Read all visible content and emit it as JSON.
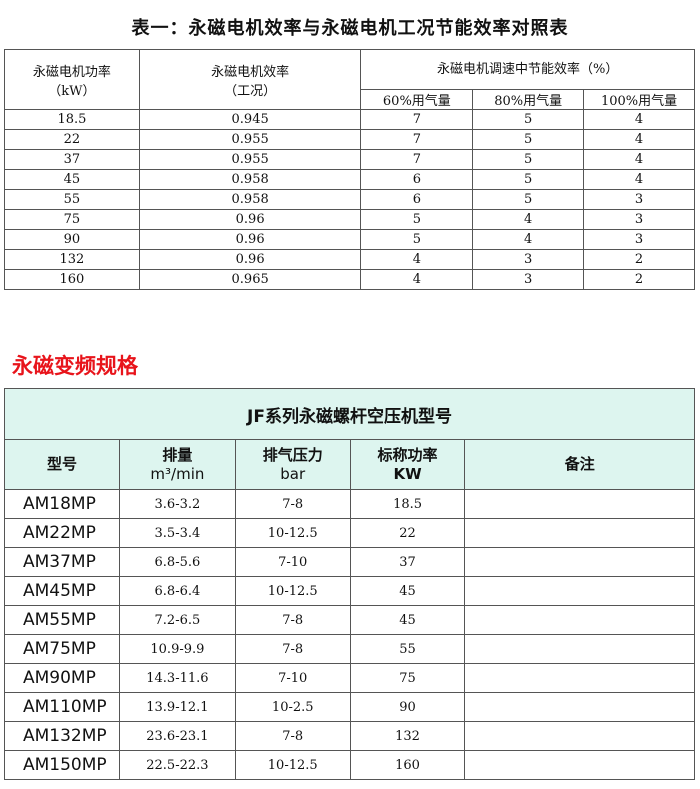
{
  "table1": {
    "title": "表一：永磁电机效率与永磁电机工况节能效率对照表",
    "headers": {
      "power": "永磁电机功率",
      "power_unit": "（kW）",
      "eff": "永磁电机效率",
      "eff_note": "（工况）",
      "saving": "永磁电机调速中节能效率（%）",
      "sub": [
        "60%用气量",
        "80%用气量",
        "100%用气量"
      ]
    },
    "rows": [
      [
        "18.5",
        "0.945",
        "7",
        "5",
        "4"
      ],
      [
        "22",
        "0.955",
        "7",
        "5",
        "4"
      ],
      [
        "37",
        "0.955",
        "7",
        "5",
        "4"
      ],
      [
        "45",
        "0.958",
        "6",
        "5",
        "4"
      ],
      [
        "55",
        "0.958",
        "6",
        "5",
        "3"
      ],
      [
        "75",
        "0.96",
        "5",
        "4",
        "3"
      ],
      [
        "90",
        "0.96",
        "5",
        "4",
        "3"
      ],
      [
        "132",
        "0.96",
        "4",
        "3",
        "2"
      ],
      [
        "160",
        "0.965",
        "4",
        "3",
        "2"
      ]
    ]
  },
  "section_heading": "永磁变频规格",
  "table2": {
    "title": "JF系列永磁螺杆空压机型号",
    "headers": {
      "model": "型号",
      "flow": "排量",
      "flow_unit": "m³/min",
      "pressure": "排气压力",
      "pressure_unit": "bar",
      "power": "标称功率",
      "power_unit": "KW",
      "note": "备注"
    },
    "rows": [
      [
        "AM18MP",
        "3.6-3.2",
        "7-8",
        "18.5",
        ""
      ],
      [
        "AM22MP",
        "3.5-3.4",
        "10-12.5",
        "22",
        ""
      ],
      [
        "AM37MP",
        "6.8-5.6",
        "7-10",
        "37",
        ""
      ],
      [
        "AM45MP",
        "6.8-6.4",
        "10-12.5",
        "45",
        ""
      ],
      [
        "AM55MP",
        "7.2-6.5",
        "7-8",
        "45",
        ""
      ],
      [
        "AM75MP",
        "10.9-9.9",
        "7-8",
        "55",
        ""
      ],
      [
        "AM90MP",
        "14.3-11.6",
        "7-10",
        "75",
        ""
      ],
      [
        "AM110MP",
        "13.9-12.1",
        "10-2.5",
        "90",
        ""
      ],
      [
        "AM132MP",
        "23.6-23.1",
        "7-8",
        "132",
        ""
      ],
      [
        "AM150MP",
        "22.5-22.3",
        "10-12.5",
        "160",
        ""
      ]
    ]
  },
  "colors": {
    "header_bg": "#ddf5ef",
    "heading_red": "#e8141b"
  }
}
